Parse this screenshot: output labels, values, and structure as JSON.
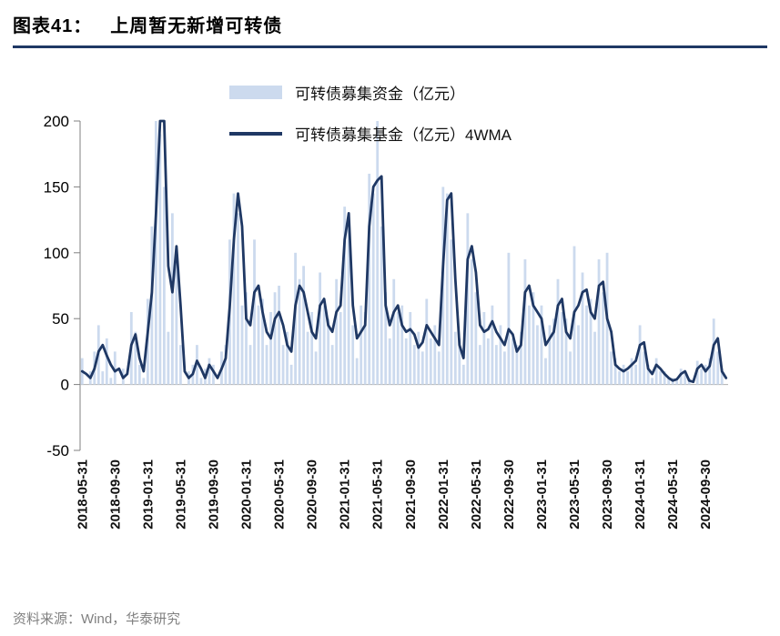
{
  "header": {
    "prefix": "图表41：",
    "title": "上周暂无新增可转债"
  },
  "legend": [
    {
      "label": "可转债募集资金（亿元）",
      "type": "bar"
    },
    {
      "label": "可转债募集基金（亿元）4WMA",
      "type": "line"
    }
  ],
  "footer": {
    "source": "资料来源：Wind，华泰研究"
  },
  "colors": {
    "bar": "#ccdaee",
    "line": "#1f3864",
    "title_underline": "#1f3864",
    "axis": "#808080",
    "zero_line": "#b0b0b0"
  },
  "chart_data": {
    "type": "bar+line",
    "title": "上周暂无新增可转债",
    "ylabel": "",
    "xlabel": "",
    "ylim": [
      -50,
      200
    ],
    "yticks": [
      -50,
      0,
      50,
      100,
      150,
      200
    ],
    "grid": false,
    "legend_position": "top-center",
    "x_unit": "half-month samples from 2018-05 to 2024-11",
    "x_ticks_every_n_points": 8,
    "x_tick_labels": [
      "2018-05-31",
      "2018-09-30",
      "2019-01-31",
      "2019-05-31",
      "2019-09-30",
      "2020-01-31",
      "2020-05-31",
      "2020-09-30",
      "2021-01-31",
      "2021-05-31",
      "2021-09-30",
      "2022-01-31",
      "2022-05-31",
      "2022-09-30",
      "2023-01-31",
      "2023-05-31",
      "2023-09-30",
      "2024-01-31",
      "2024-05-31",
      "2024-09-30"
    ],
    "series": [
      {
        "name": "可转债募集资金（亿元）",
        "type": "bar",
        "color": "#ccdaee",
        "values": [
          20,
          0,
          10,
          25,
          45,
          10,
          35,
          5,
          25,
          0,
          12,
          0,
          55,
          40,
          15,
          5,
          65,
          120,
          200,
          190,
          150,
          40,
          130,
          95,
          30,
          0,
          10,
          15,
          30,
          5,
          12,
          20,
          15,
          0,
          25,
          30,
          110,
          145,
          130,
          60,
          70,
          30,
          110,
          60,
          65,
          30,
          55,
          70,
          75,
          30,
          40,
          15,
          100,
          80,
          90,
          40,
          55,
          25,
          85,
          60,
          50,
          30,
          80,
          55,
          135,
          120,
          45,
          20,
          60,
          55,
          160,
          145,
          200,
          120,
          70,
          35,
          80,
          55,
          60,
          35,
          55,
          30,
          40,
          25,
          65,
          35,
          45,
          25,
          150,
          145,
          110,
          40,
          35,
          15,
          130,
          95,
          70,
          30,
          55,
          35,
          60,
          30,
          45,
          25,
          100,
          35,
          30,
          40,
          95,
          60,
          70,
          45,
          60,
          20,
          45,
          50,
          80,
          55,
          50,
          25,
          105,
          45,
          85,
          60,
          65,
          40,
          95,
          70,
          100,
          25,
          20,
          10,
          15,
          10,
          20,
          15,
          45,
          25,
          15,
          5,
          20,
          10,
          10,
          5,
          5,
          3,
          12,
          8,
          5,
          0,
          18,
          12,
          15,
          20,
          50,
          25,
          12,
          0
        ]
      },
      {
        "name": "可转债募集基金（亿元）4WMA",
        "type": "line",
        "color": "#1f3864",
        "values": [
          10,
          8,
          5,
          12,
          25,
          30,
          22,
          15,
          10,
          12,
          5,
          8,
          30,
          38,
          20,
          10,
          40,
          70,
          130,
          200,
          200,
          90,
          70,
          105,
          60,
          10,
          5,
          8,
          18,
          12,
          5,
          15,
          10,
          5,
          12,
          20,
          60,
          110,
          145,
          120,
          50,
          45,
          70,
          75,
          55,
          40,
          35,
          50,
          55,
          45,
          30,
          25,
          60,
          75,
          70,
          55,
          40,
          35,
          60,
          65,
          45,
          40,
          55,
          60,
          110,
          130,
          60,
          35,
          40,
          45,
          120,
          150,
          155,
          158,
          60,
          45,
          55,
          60,
          45,
          40,
          42,
          38,
          28,
          32,
          45,
          40,
          35,
          30,
          90,
          140,
          145,
          80,
          30,
          20,
          95,
          105,
          85,
          45,
          40,
          42,
          48,
          40,
          35,
          30,
          42,
          38,
          25,
          30,
          70,
          75,
          60,
          55,
          50,
          30,
          35,
          40,
          60,
          65,
          40,
          35,
          55,
          60,
          70,
          72,
          55,
          50,
          75,
          78,
          50,
          40,
          15,
          12,
          10,
          12,
          15,
          18,
          30,
          32,
          12,
          8,
          15,
          12,
          8,
          5,
          3,
          4,
          8,
          10,
          3,
          2,
          12,
          15,
          10,
          14,
          30,
          35,
          10,
          5
        ]
      }
    ]
  }
}
